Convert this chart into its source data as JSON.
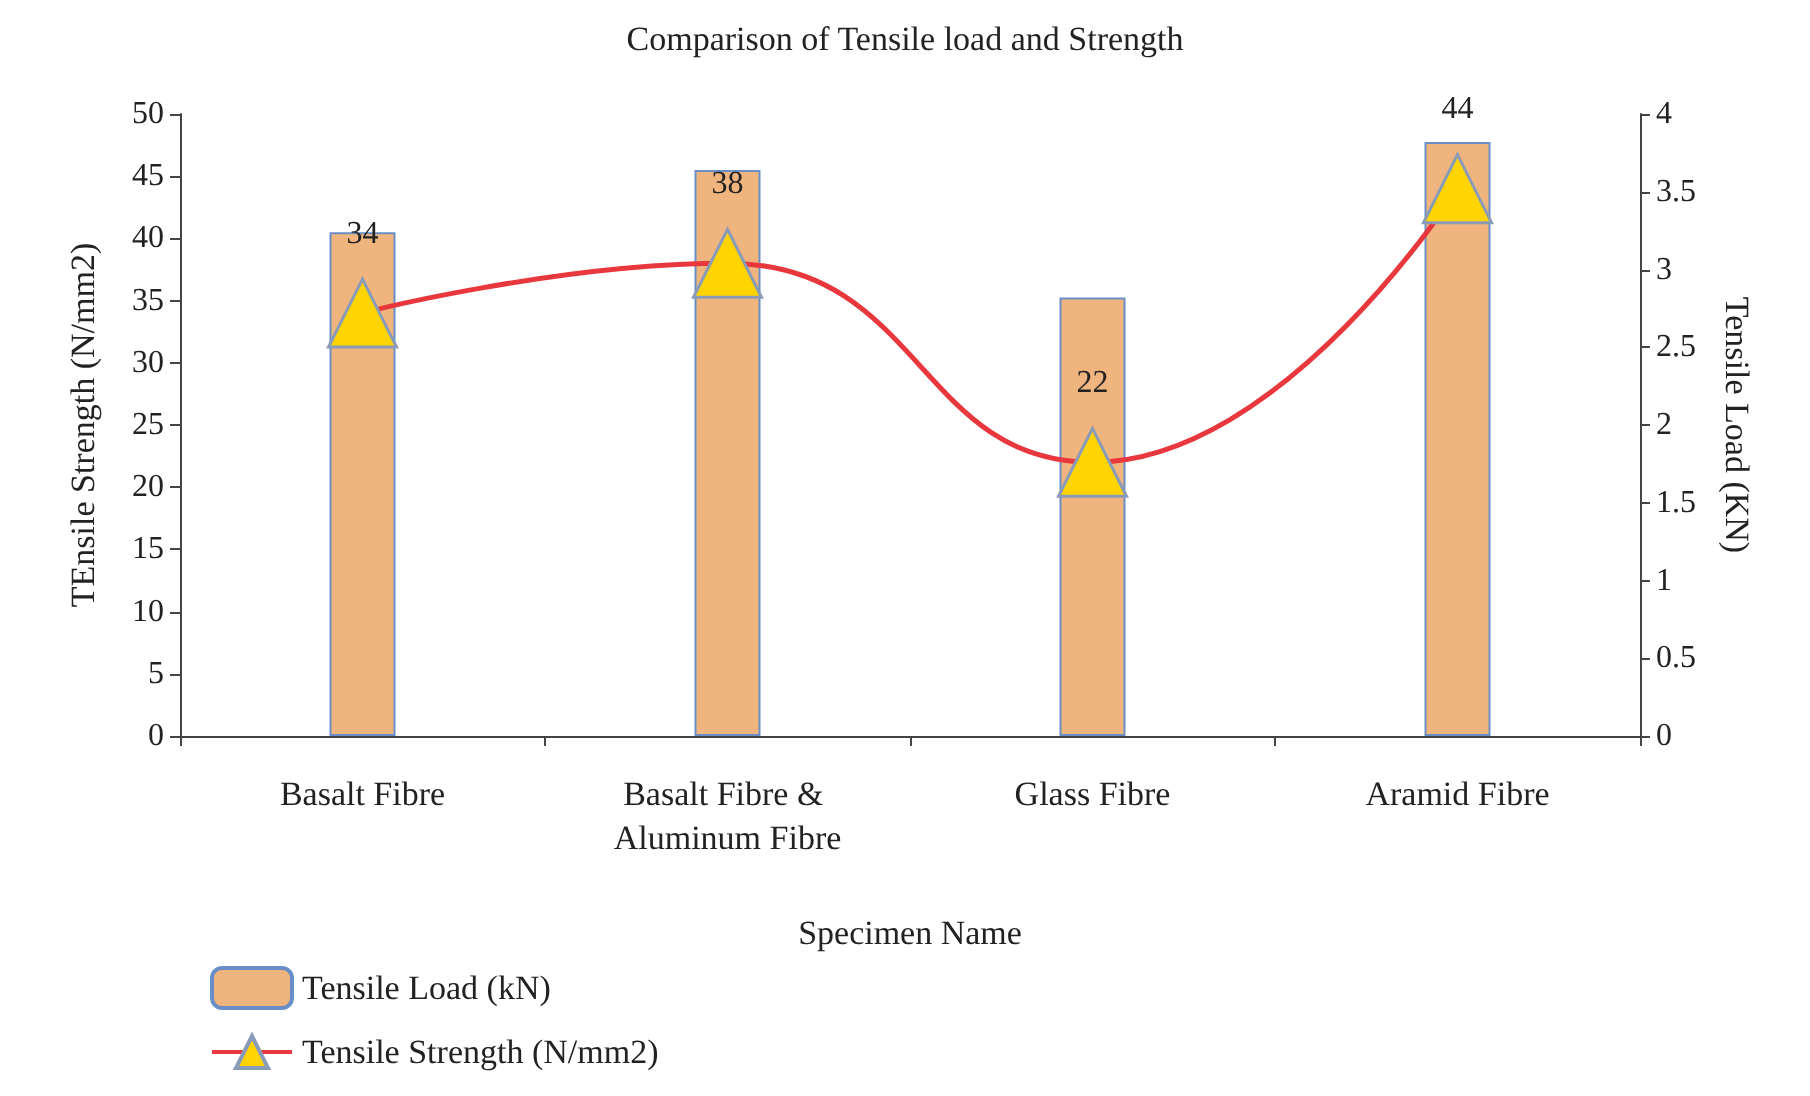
{
  "chart_data": {
    "type": "bar",
    "title": "Comparison of Tensile load and Strength",
    "xlabel": "Specimen Name",
    "ylabel": "TEnsile Strength (N/mm2)",
    "y2label": "Tensile Load (KN)",
    "categories": [
      "Basalt Fibre",
      "Basalt Fibre & Aluminum Fibre",
      "Glass Fibre",
      "Aramid Fibre"
    ],
    "series": [
      {
        "name": "Tensile Load (kN)",
        "axis": "y2",
        "color": "#f0b57e",
        "values": [
          3.24,
          3.64,
          2.82,
          3.82
        ]
      },
      {
        "name": "Tensile Strength (N/mm2)",
        "type": "line",
        "color": "#e8383d",
        "marker": "triangle",
        "values": [
          34,
          38,
          22,
          44
        ],
        "value_labels": [
          "34",
          "38",
          "22",
          "44"
        ]
      }
    ],
    "ylim": [
      0,
      50
    ],
    "yticks": [
      0,
      5,
      10,
      15,
      20,
      25,
      30,
      35,
      40,
      45,
      50
    ],
    "y2lim": [
      0,
      4
    ],
    "y2ticks": [
      0,
      0.5,
      1,
      1.5,
      2,
      2.5,
      3,
      3.5,
      4
    ],
    "grid": false,
    "legend": "bottom left"
  }
}
